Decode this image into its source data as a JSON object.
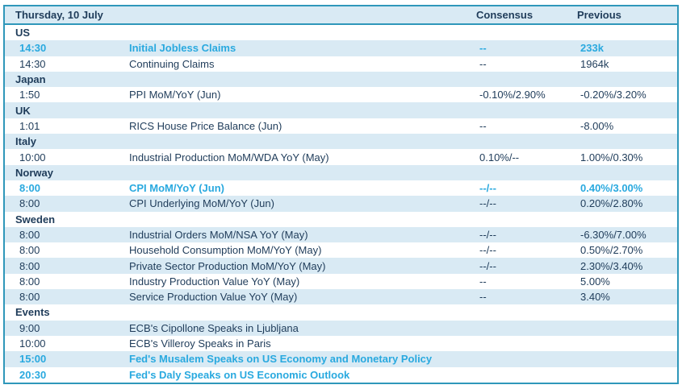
{
  "header": {
    "date": "Thursday, 10 July",
    "consensus_label": "Consensus",
    "previous_label": "Previous"
  },
  "colors": {
    "accent_teal": "#2f97ba",
    "stripe_blue": "#d9eaf4",
    "navy_text": "#1f3c5a",
    "highlight_cyan": "#29a9df"
  },
  "rows": [
    {
      "kind": "section",
      "label": "US"
    },
    {
      "kind": "event",
      "time": "14:30",
      "event": "Initial Jobless Claims",
      "consensus": "--",
      "previous": "233k",
      "highlight": true
    },
    {
      "kind": "event",
      "time": "14:30",
      "event": "Continuing Claims",
      "consensus": "--",
      "previous": "1964k",
      "highlight": false
    },
    {
      "kind": "section",
      "label": "Japan"
    },
    {
      "kind": "event",
      "time": "1:50",
      "event": "PPI MoM/YoY (Jun)",
      "consensus": "-0.10%/2.90%",
      "previous": "-0.20%/3.20%",
      "highlight": false
    },
    {
      "kind": "section",
      "label": "UK"
    },
    {
      "kind": "event",
      "time": "1:01",
      "event": "RICS House Price Balance (Jun)",
      "consensus": "--",
      "previous": "-8.00%",
      "highlight": false
    },
    {
      "kind": "section",
      "label": "Italy"
    },
    {
      "kind": "event",
      "time": "10:00",
      "event": "Industrial Production MoM/WDA YoY (May)",
      "consensus": "0.10%/--",
      "previous": "1.00%/0.30%",
      "highlight": false
    },
    {
      "kind": "section",
      "label": "Norway"
    },
    {
      "kind": "event",
      "time": "8:00",
      "event": "CPI MoM/YoY (Jun)",
      "consensus": "--/--",
      "previous": "0.40%/3.00%",
      "highlight": true
    },
    {
      "kind": "event",
      "time": "8:00",
      "event": "CPI Underlying MoM/YoY (Jun)",
      "consensus": "--/--",
      "previous": "0.20%/2.80%",
      "highlight": false
    },
    {
      "kind": "section",
      "label": "Sweden"
    },
    {
      "kind": "event",
      "time": "8:00",
      "event": "Industrial Orders MoM/NSA YoY (May)",
      "consensus": "--/--",
      "previous": "-6.30%/7.00%",
      "highlight": false
    },
    {
      "kind": "event",
      "time": "8:00",
      "event": "Household Consumption MoM/YoY (May)",
      "consensus": "--/--",
      "previous": "0.50%/2.70%",
      "highlight": false
    },
    {
      "kind": "event",
      "time": "8:00",
      "event": "Private Sector Production MoM/YoY (May)",
      "consensus": "--/--",
      "previous": "2.30%/3.40%",
      "highlight": false
    },
    {
      "kind": "event",
      "time": "8:00",
      "event": "Industry Production Value YoY (May)",
      "consensus": "--",
      "previous": "5.00%",
      "highlight": false
    },
    {
      "kind": "event",
      "time": "8:00",
      "event": "Service Production Value YoY (May)",
      "consensus": "--",
      "previous": "3.40%",
      "highlight": false
    },
    {
      "kind": "section",
      "label": "Events"
    },
    {
      "kind": "event",
      "time": "9:00",
      "event": "ECB's Cipollone Speaks in Ljubljana",
      "consensus": "",
      "previous": "",
      "highlight": false
    },
    {
      "kind": "event",
      "time": "10:00",
      "event": "ECB's Villeroy Speaks in Paris",
      "consensus": "",
      "previous": "",
      "highlight": false
    },
    {
      "kind": "event",
      "time": "15:00",
      "event": "Fed's Musalem Speaks on US Economy and Monetary Policy",
      "consensus": "",
      "previous": "",
      "highlight": true
    },
    {
      "kind": "event",
      "time": "20:30",
      "event": "Fed's Daly Speaks on US Economic Outlook",
      "consensus": "",
      "previous": "",
      "highlight": true
    }
  ]
}
